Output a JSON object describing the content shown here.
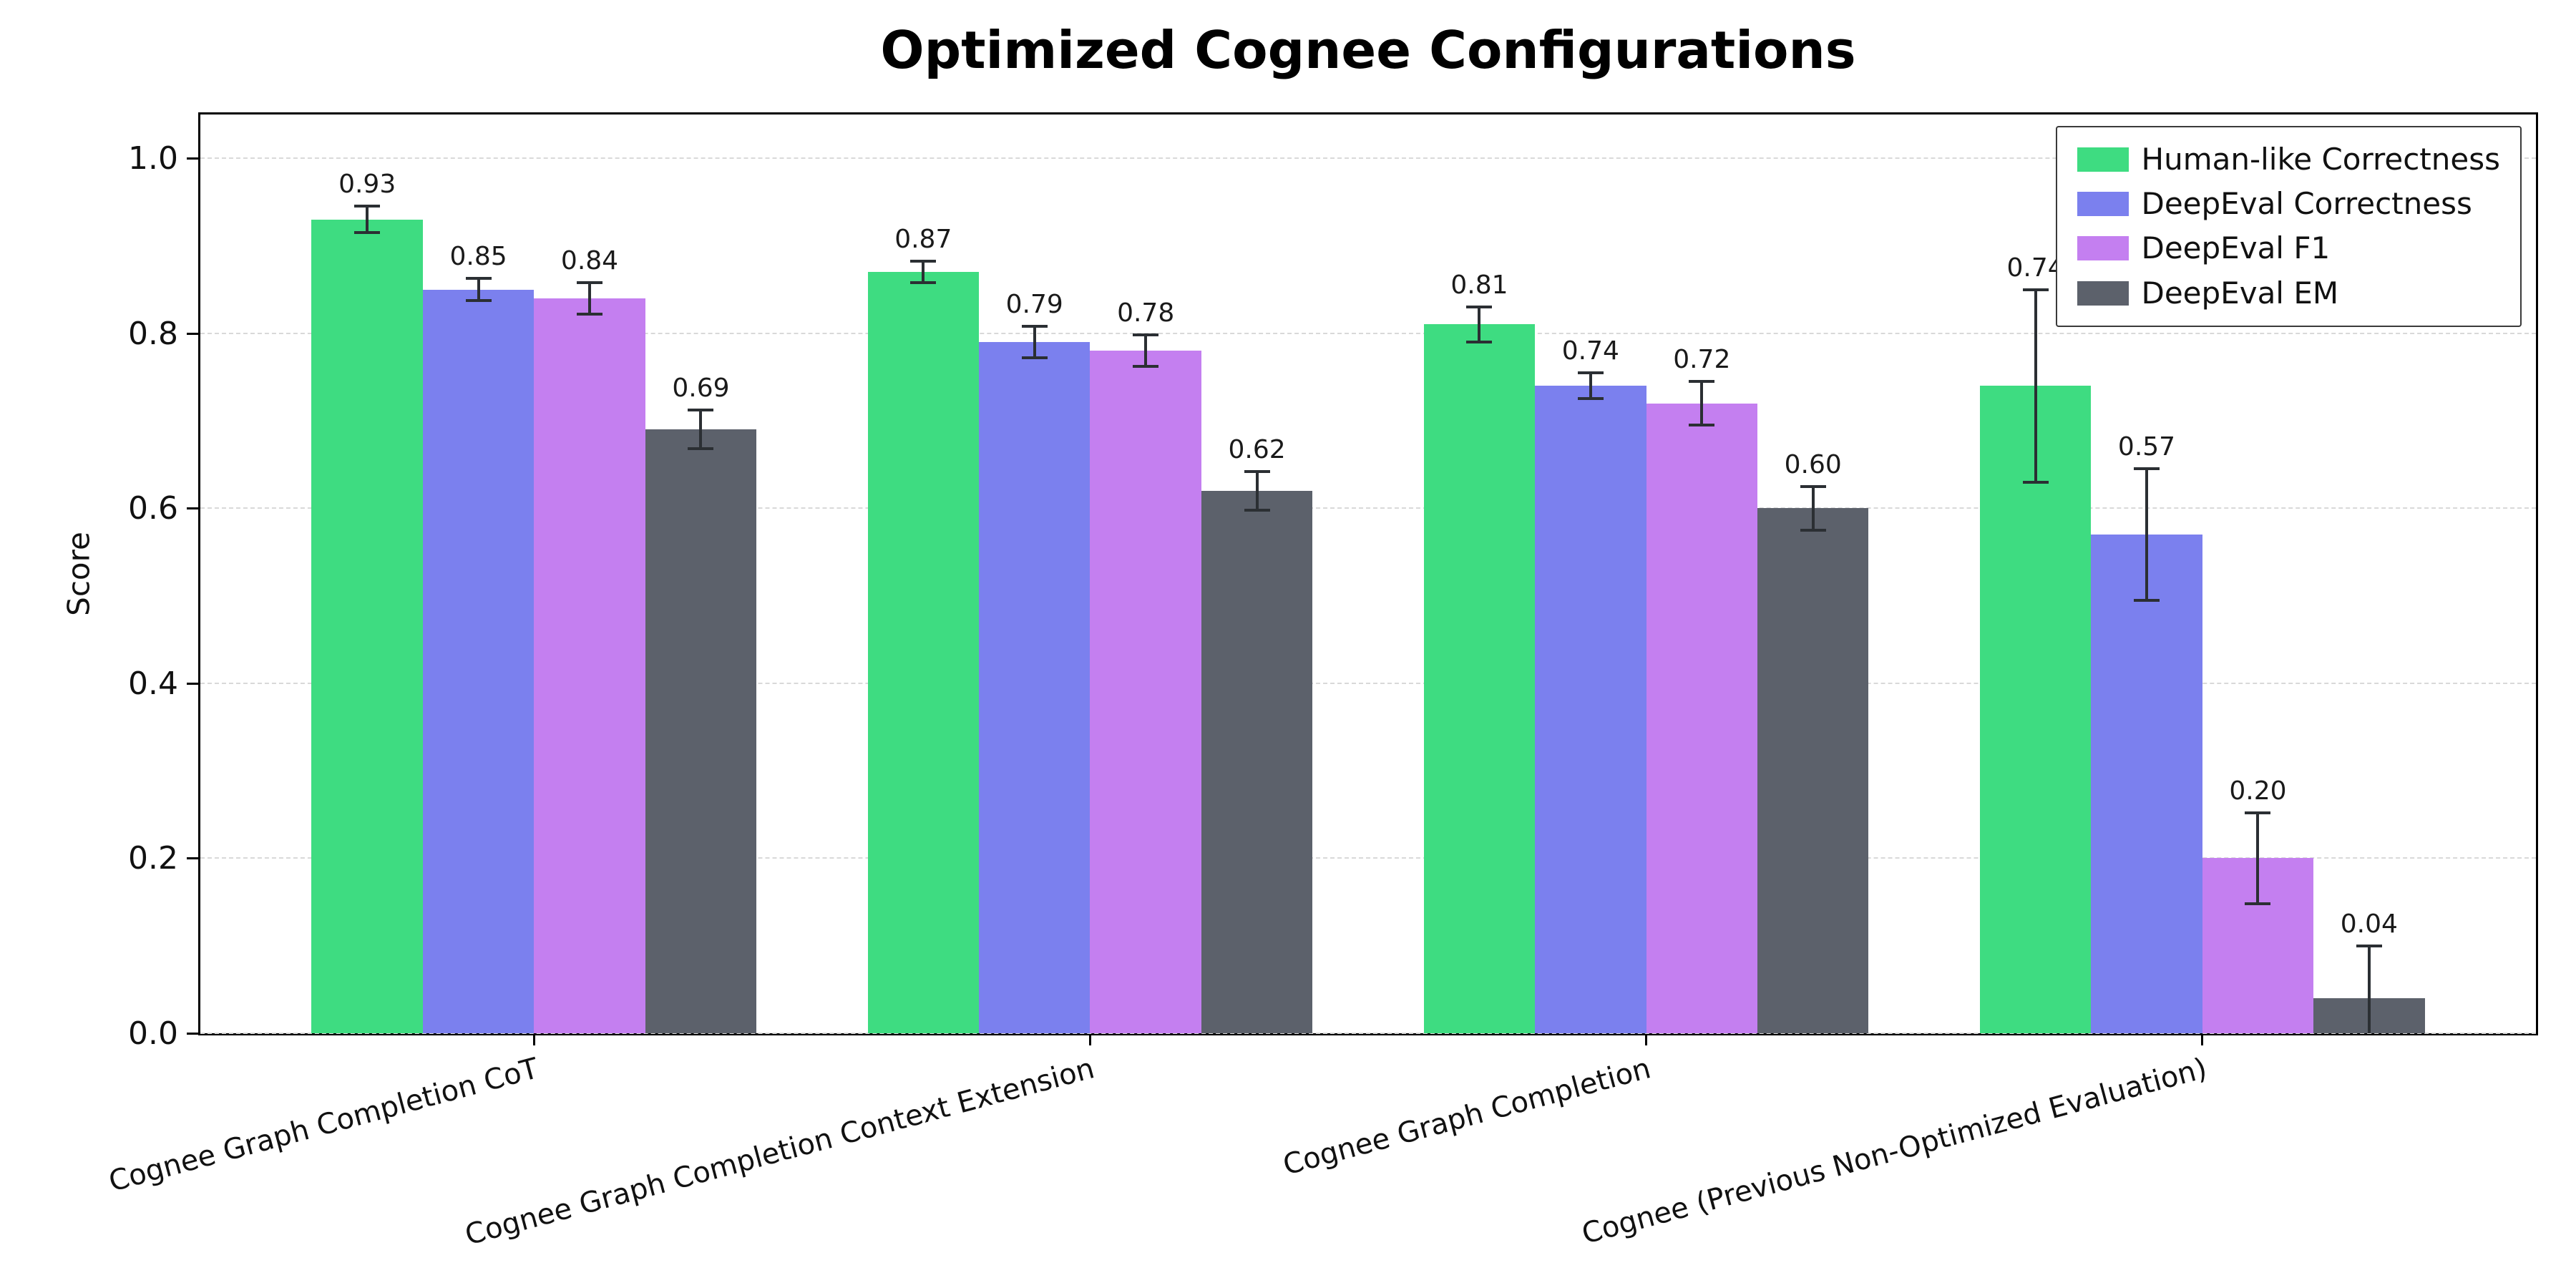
{
  "chart_data": {
    "type": "bar",
    "title": "Optimized Cognee Configurations",
    "xlabel": "",
    "ylabel": "Score",
    "ylim": [
      0,
      1.05
    ],
    "yticks": [
      0.0,
      0.2,
      0.4,
      0.6,
      0.8,
      1.0
    ],
    "grid": "horizontal-dashed",
    "grid_color": "#d9d9d9",
    "error_bar_color": "#2b2f33",
    "legend_position": "upper right",
    "categories": [
      "Cognee Graph Completion CoT",
      "Cognee Graph Completion Context Extension",
      "Cognee Graph Completion",
      "Cognee (Previous Non-Optimized Evaluation)"
    ],
    "series": [
      {
        "name": "Human-like Correctness",
        "color": "#3edc81",
        "values": [
          0.93,
          0.87,
          0.81,
          0.74
        ],
        "errors": [
          0.015,
          0.012,
          0.02,
          0.11
        ]
      },
      {
        "name": "DeepEval Correctness",
        "color": "#7b80ee",
        "values": [
          0.85,
          0.79,
          0.74,
          0.57
        ],
        "errors": [
          0.013,
          0.018,
          0.015,
          0.075
        ]
      },
      {
        "name": "DeepEval F1",
        "color": "#c47ff0",
        "values": [
          0.84,
          0.78,
          0.72,
          0.2
        ],
        "errors": [
          0.018,
          0.018,
          0.025,
          0.052
        ]
      },
      {
        "name": "DeepEval EM",
        "color": "#5c616b",
        "values": [
          0.69,
          0.62,
          0.6,
          0.04
        ],
        "errors": [
          0.022,
          0.022,
          0.025,
          0.06
        ]
      }
    ]
  }
}
